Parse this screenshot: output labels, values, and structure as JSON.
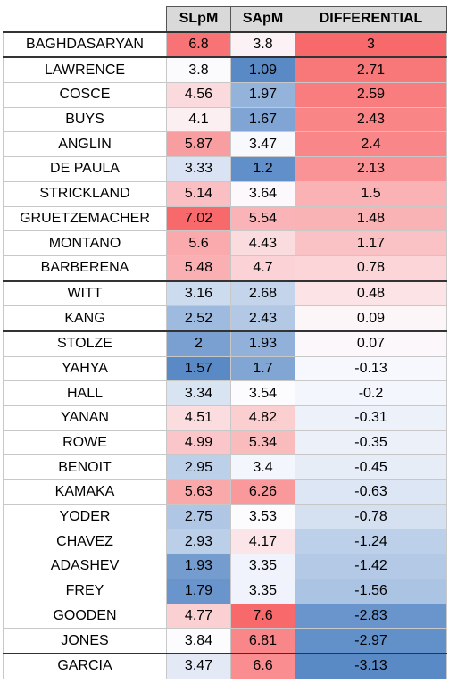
{
  "chart_data": {
    "type": "table",
    "columns": [
      "",
      "SLpM",
      "SApM",
      "DIFFERENTIAL"
    ],
    "rows": [
      {
        "name": "BAGHDASARYAN",
        "slpm": "6.8",
        "sapm": "3.8",
        "diff": "3"
      },
      {
        "name": "LAWRENCE",
        "slpm": "3.8",
        "sapm": "1.09",
        "diff": "2.71"
      },
      {
        "name": "COSCE",
        "slpm": "4.56",
        "sapm": "1.97",
        "diff": "2.59"
      },
      {
        "name": "BUYS",
        "slpm": "4.1",
        "sapm": "1.67",
        "diff": "2.43"
      },
      {
        "name": "ANGLIN",
        "slpm": "5.87",
        "sapm": "3.47",
        "diff": "2.4"
      },
      {
        "name": "DE PAULA",
        "slpm": "3.33",
        "sapm": "1.2",
        "diff": "2.13"
      },
      {
        "name": "STRICKLAND",
        "slpm": "5.14",
        "sapm": "3.64",
        "diff": "1.5"
      },
      {
        "name": "GRUETZEMACHER",
        "slpm": "7.02",
        "sapm": "5.54",
        "diff": "1.48"
      },
      {
        "name": "MONTANO",
        "slpm": "5.6",
        "sapm": "4.43",
        "diff": "1.17"
      },
      {
        "name": "BARBERENA",
        "slpm": "5.48",
        "sapm": "4.7",
        "diff": "0.78"
      },
      {
        "name": "WITT",
        "slpm": "3.16",
        "sapm": "2.68",
        "diff": "0.48"
      },
      {
        "name": "KANG",
        "slpm": "2.52",
        "sapm": "2.43",
        "diff": "0.09"
      },
      {
        "name": "STOLZE",
        "slpm": "2",
        "sapm": "1.93",
        "diff": "0.07"
      },
      {
        "name": "YAHYA",
        "slpm": "1.57",
        "sapm": "1.7",
        "diff": "-0.13"
      },
      {
        "name": "HALL",
        "slpm": "3.34",
        "sapm": "3.54",
        "diff": "-0.2"
      },
      {
        "name": "YANAN",
        "slpm": "4.51",
        "sapm": "4.82",
        "diff": "-0.31"
      },
      {
        "name": "ROWE",
        "slpm": "4.99",
        "sapm": "5.34",
        "diff": "-0.35"
      },
      {
        "name": "BENOIT",
        "slpm": "2.95",
        "sapm": "3.4",
        "diff": "-0.45"
      },
      {
        "name": "KAMAKA",
        "slpm": "5.63",
        "sapm": "6.26",
        "diff": "-0.63"
      },
      {
        "name": "YODER",
        "slpm": "2.75",
        "sapm": "3.53",
        "diff": "-0.78"
      },
      {
        "name": "CHAVEZ",
        "slpm": "2.93",
        "sapm": "4.17",
        "diff": "-1.24"
      },
      {
        "name": "ADASHEV",
        "slpm": "1.93",
        "sapm": "3.35",
        "diff": "-1.42"
      },
      {
        "name": "FREY",
        "slpm": "1.79",
        "sapm": "3.35",
        "diff": "-1.56"
      },
      {
        "name": "GOODEN",
        "slpm": "4.77",
        "sapm": "7.6",
        "diff": "-2.83"
      },
      {
        "name": "JONES",
        "slpm": "3.84",
        "sapm": "6.81",
        "diff": "-2.97"
      },
      {
        "name": "GARCIA",
        "slpm": "3.47",
        "sapm": "6.6",
        "diff": "-3.13"
      }
    ],
    "color_scale": {
      "low": "#5a8ac6",
      "mid": "#fcfcff",
      "high": "#f8696b"
    }
  }
}
